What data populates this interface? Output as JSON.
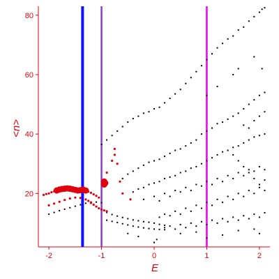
{
  "chart_data": {
    "type": "scatter",
    "title": "",
    "xlabel": "E",
    "ylabel": "<n>",
    "xlim": [
      -2.2,
      2.2
    ],
    "ylim": [
      2,
      83
    ],
    "x_ticks": [
      -2,
      -1,
      0,
      1,
      2
    ],
    "y_ticks": [
      20,
      40,
      60,
      80
    ],
    "grid": false,
    "colors": {
      "axis": "#e0000d",
      "red_points": "#e0000d",
      "black_points": "#000000",
      "blue_line": "#1010ff",
      "purple_line": "#8a3fd0",
      "magenta_line": "#ee00ee"
    },
    "vertical_lines": [
      {
        "x": -1.36,
        "color": "#1010ff"
      },
      {
        "x": -1.0,
        "color": "#8a3fd0"
      },
      {
        "x": 1.0,
        "color": "#ee00ee"
      }
    ],
    "red_points": [
      [
        -2.1,
        19.5
      ],
      [
        -2.05,
        19.8
      ],
      [
        -2.0,
        20.0
      ],
      [
        -1.95,
        20.4
      ],
      [
        -1.9,
        20.7
      ],
      [
        -1.85,
        21.0
      ],
      [
        -1.8,
        21.3
      ],
      [
        -1.75,
        21.5
      ],
      [
        -1.7,
        21.6
      ],
      [
        -1.65,
        21.7
      ],
      [
        -1.6,
        21.6
      ],
      [
        -1.55,
        21.4
      ],
      [
        -1.5,
        21.2
      ],
      [
        -1.45,
        21.0
      ],
      [
        -1.4,
        21.1
      ],
      [
        -1.35,
        21.3
      ],
      [
        -1.3,
        21.0
      ],
      [
        -1.25,
        20.6
      ],
      [
        -1.2,
        20.2
      ],
      [
        -1.15,
        19.7
      ],
      [
        -1.1,
        19.2
      ],
      [
        -1.05,
        18.6
      ],
      [
        -1.2,
        16.8
      ],
      [
        -1.15,
        16.2
      ],
      [
        -1.1,
        15.6
      ],
      [
        -1.05,
        15.0
      ],
      [
        -1.0,
        14.6
      ],
      [
        -0.95,
        14.3
      ],
      [
        -0.9,
        14.0
      ],
      [
        -1.3,
        18.0
      ],
      [
        -1.4,
        18.5
      ],
      [
        -1.5,
        18.6
      ],
      [
        -1.6,
        18.3
      ],
      [
        -1.7,
        17.8
      ],
      [
        -1.8,
        17.2
      ],
      [
        -1.9,
        16.6
      ],
      [
        -2.0,
        16.0
      ],
      [
        -0.95,
        23.0
      ],
      [
        -0.95,
        24.0
      ],
      [
        -0.93,
        23.5
      ],
      [
        -0.9,
        27.0
      ],
      [
        -0.8,
        31.0
      ],
      [
        -0.75,
        33.0
      ],
      [
        -0.75,
        35.0
      ],
      [
        -0.7,
        30.0
      ],
      [
        -0.45,
        18.0
      ],
      [
        -0.6,
        20.0
      ],
      [
        -0.65,
        24.0
      ],
      [
        -1.25,
        17.5
      ],
      [
        -1.2,
        17.0
      ]
    ],
    "black_points": [
      [
        -1.6,
        15.2
      ],
      [
        -1.5,
        15.7
      ],
      [
        -1.4,
        16.2
      ],
      [
        -1.3,
        16.7
      ],
      [
        -1.2,
        17.0
      ],
      [
        -1.1,
        17.1
      ],
      [
        -1.0,
        16.9
      ],
      [
        -1.7,
        14.7
      ],
      [
        -1.8,
        14.2
      ],
      [
        -1.9,
        13.6
      ],
      [
        -2.0,
        13.0
      ],
      [
        -0.9,
        13.6
      ],
      [
        -0.8,
        12.9
      ],
      [
        -0.7,
        12.4
      ],
      [
        -0.6,
        11.9
      ],
      [
        -0.5,
        11.5
      ],
      [
        -0.4,
        11.1
      ],
      [
        -0.3,
        10.8
      ],
      [
        -0.2,
        10.5
      ],
      [
        -0.1,
        10.3
      ],
      [
        0.0,
        10.0
      ],
      [
        0.1,
        9.6
      ],
      [
        0.2,
        9.3
      ],
      [
        -0.9,
        11.0
      ],
      [
        -0.8,
        10.6
      ],
      [
        -0.7,
        10.2
      ],
      [
        -0.6,
        9.8
      ],
      [
        -0.5,
        9.4
      ],
      [
        -0.4,
        9.0
      ],
      [
        -0.3,
        8.7
      ],
      [
        -0.2,
        8.4
      ],
      [
        -0.1,
        8.2
      ],
      [
        0.0,
        8.0
      ],
      [
        0.1,
        7.9
      ],
      [
        0.2,
        7.8
      ],
      [
        -0.5,
        6.5
      ],
      [
        -0.3,
        5.5
      ],
      [
        0.0,
        3.5
      ],
      [
        0.05,
        4.5
      ],
      [
        -1.0,
        36.5
      ],
      [
        -0.9,
        38.0
      ],
      [
        -0.8,
        39.5
      ],
      [
        -0.7,
        41.0
      ],
      [
        -0.6,
        42.5
      ],
      [
        -0.5,
        44.0
      ],
      [
        -0.4,
        45.2
      ],
      [
        -0.3,
        46.0
      ],
      [
        -0.2,
        47.0
      ],
      [
        -0.1,
        47.5
      ],
      [
        0.0,
        48.5
      ],
      [
        0.1,
        49.0
      ],
      [
        0.2,
        50.5
      ],
      [
        0.3,
        52.0
      ],
      [
        0.4,
        53.5
      ],
      [
        0.5,
        55.0
      ],
      [
        0.6,
        57.0
      ],
      [
        0.7,
        59.0
      ],
      [
        0.8,
        61.0
      ],
      [
        0.9,
        63.0
      ],
      [
        1.0,
        65.0
      ],
      [
        1.1,
        67.0
      ],
      [
        1.2,
        69.0
      ],
      [
        1.3,
        70.5
      ],
      [
        1.4,
        72.0
      ],
      [
        1.5,
        73.0
      ],
      [
        1.6,
        75.0
      ],
      [
        1.7,
        76.0
      ],
      [
        1.8,
        78.0
      ],
      [
        1.9,
        79.5
      ],
      [
        2.0,
        81.0
      ],
      [
        2.05,
        82.0
      ],
      [
        2.1,
        82.5
      ],
      [
        -0.6,
        25.0
      ],
      [
        -0.5,
        26.5
      ],
      [
        -0.4,
        27.5
      ],
      [
        -0.3,
        28.5
      ],
      [
        -0.2,
        29.5
      ],
      [
        -0.1,
        30.5
      ],
      [
        0.0,
        31.0
      ],
      [
        0.1,
        31.5
      ],
      [
        0.2,
        32.5
      ],
      [
        0.3,
        33.5
      ],
      [
        0.4,
        34.5
      ],
      [
        0.5,
        35.0
      ],
      [
        0.6,
        36.0
      ],
      [
        0.7,
        37.0
      ],
      [
        0.8,
        38.0
      ],
      [
        0.9,
        40.0
      ],
      [
        1.0,
        41.0
      ],
      [
        1.1,
        42.0
      ],
      [
        1.2,
        43.5
      ],
      [
        1.3,
        44.0
      ],
      [
        1.4,
        45.0
      ],
      [
        1.5,
        46.0
      ],
      [
        1.6,
        47.0
      ],
      [
        1.7,
        48.5
      ],
      [
        1.8,
        50.0
      ],
      [
        1.9,
        51.5
      ],
      [
        2.0,
        53.0
      ],
      [
        2.1,
        54.0
      ],
      [
        -0.4,
        20.5
      ],
      [
        -0.3,
        21.5
      ],
      [
        -0.2,
        22.0
      ],
      [
        -0.1,
        23.0
      ],
      [
        0.0,
        23.5
      ],
      [
        0.1,
        24.0
      ],
      [
        0.2,
        25.0
      ],
      [
        0.3,
        25.5
      ],
      [
        0.4,
        26.0
      ],
      [
        0.5,
        27.0
      ],
      [
        0.6,
        27.5
      ],
      [
        0.7,
        28.5
      ],
      [
        0.8,
        29.0
      ],
      [
        0.9,
        30.0
      ],
      [
        1.0,
        31.0
      ],
      [
        1.1,
        32.0
      ],
      [
        1.2,
        33.0
      ],
      [
        1.3,
        34.0
      ],
      [
        1.4,
        34.5
      ],
      [
        1.5,
        35.5
      ],
      [
        1.6,
        36.0
      ],
      [
        1.7,
        37.0
      ],
      [
        1.8,
        38.0
      ],
      [
        1.9,
        39.0
      ],
      [
        2.0,
        39.5
      ],
      [
        2.1,
        40.0
      ],
      [
        -0.2,
        18.0
      ],
      [
        0.0,
        19.0
      ],
      [
        0.1,
        17.5
      ],
      [
        0.2,
        20.0
      ],
      [
        0.3,
        19.0
      ],
      [
        0.4,
        21.0
      ],
      [
        0.5,
        20.5
      ],
      [
        0.6,
        22.0
      ],
      [
        0.7,
        21.0
      ],
      [
        0.8,
        23.0
      ],
      [
        0.9,
        22.5
      ],
      [
        1.0,
        24.0
      ],
      [
        1.1,
        23.0
      ],
      [
        1.2,
        25.0
      ],
      [
        1.3,
        24.0
      ],
      [
        1.4,
        26.0
      ],
      [
        1.5,
        25.0
      ],
      [
        1.6,
        27.0
      ],
      [
        1.7,
        26.0
      ],
      [
        1.8,
        28.0
      ],
      [
        1.9,
        27.5
      ],
      [
        2.0,
        29.0
      ],
      [
        2.1,
        28.0
      ],
      [
        0.1,
        12.0
      ],
      [
        0.2,
        13.0
      ],
      [
        0.3,
        12.5
      ],
      [
        0.4,
        14.0
      ],
      [
        0.5,
        13.0
      ],
      [
        0.6,
        15.0
      ],
      [
        0.7,
        14.0
      ],
      [
        0.8,
        16.0
      ],
      [
        0.9,
        15.0
      ],
      [
        1.0,
        17.0
      ],
      [
        1.1,
        16.0
      ],
      [
        1.2,
        18.0
      ],
      [
        1.3,
        17.0
      ],
      [
        1.4,
        19.0
      ],
      [
        1.5,
        18.0
      ],
      [
        1.6,
        20.0
      ],
      [
        1.7,
        19.0
      ],
      [
        1.8,
        21.0
      ],
      [
        1.9,
        20.0
      ],
      [
        2.0,
        22.0
      ],
      [
        2.1,
        21.0
      ],
      [
        0.2,
        8.5
      ],
      [
        0.3,
        9.0
      ],
      [
        0.4,
        8.0
      ],
      [
        0.5,
        9.5
      ],
      [
        0.6,
        8.5
      ],
      [
        0.7,
        10.0
      ],
      [
        0.8,
        9.0
      ],
      [
        0.9,
        10.5
      ],
      [
        1.0,
        9.5
      ],
      [
        1.1,
        11.0
      ],
      [
        1.2,
        10.0
      ],
      [
        1.3,
        11.5
      ],
      [
        1.4,
        10.5
      ],
      [
        1.5,
        12.0
      ],
      [
        1.6,
        11.0
      ],
      [
        1.7,
        12.5
      ],
      [
        1.8,
        11.5
      ],
      [
        1.9,
        13.0
      ],
      [
        2.0,
        12.0
      ],
      [
        2.1,
        13.5
      ],
      [
        0.5,
        6.5
      ],
      [
        0.8,
        7.0
      ],
      [
        1.0,
        5.0
      ],
      [
        1.3,
        6.0
      ],
      [
        1.6,
        7.5
      ],
      [
        1.9,
        8.0
      ],
      [
        2.0,
        6.5
      ],
      [
        1.5,
        33.0
      ],
      [
        1.6,
        31.0
      ],
      [
        1.7,
        29.0
      ],
      [
        1.8,
        27.0
      ],
      [
        1.9,
        25.0
      ],
      [
        2.0,
        23.0
      ],
      [
        2.1,
        24.5
      ],
      [
        1.7,
        43.0
      ],
      [
        1.8,
        42.0
      ],
      [
        1.9,
        44.5
      ],
      [
        2.0,
        46.0
      ],
      [
        2.1,
        47.5
      ],
      [
        1.0,
        53.0
      ],
      [
        1.2,
        56.0
      ],
      [
        1.5,
        60.0
      ],
      [
        1.6,
        62.0
      ],
      [
        1.9,
        66.0
      ],
      [
        2.05,
        62.0
      ]
    ]
  }
}
